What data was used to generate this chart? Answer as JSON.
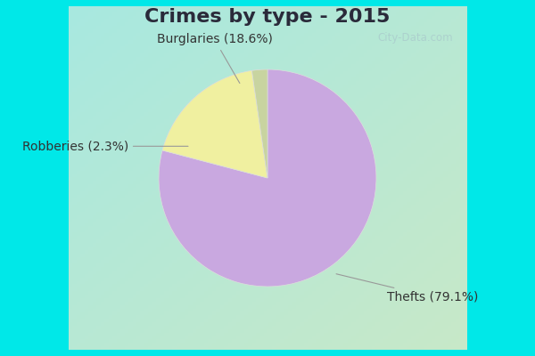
{
  "title": "Crimes by type - 2015",
  "labels": [
    "Thefts",
    "Burglaries",
    "Robberies"
  ],
  "values": [
    79.1,
    18.6,
    2.3
  ],
  "colors": [
    "#c9a8e0",
    "#f0f0a0",
    "#c8d4a0"
  ],
  "label_texts": [
    "Thefts (79.1%)",
    "Burglaries (18.6%)",
    "Robberies (2.3%)"
  ],
  "border_color": "#00e8e8",
  "bg_topleft": "#a8e8e0",
  "bg_bottomright": "#c8e8c8",
  "watermark_text": "City-Data.com",
  "startangle": 90,
  "title_fontsize": 16,
  "annot_fontsize": 10,
  "title_color": "#2a2a3a",
  "label_color": "#333333",
  "border_width": 10
}
